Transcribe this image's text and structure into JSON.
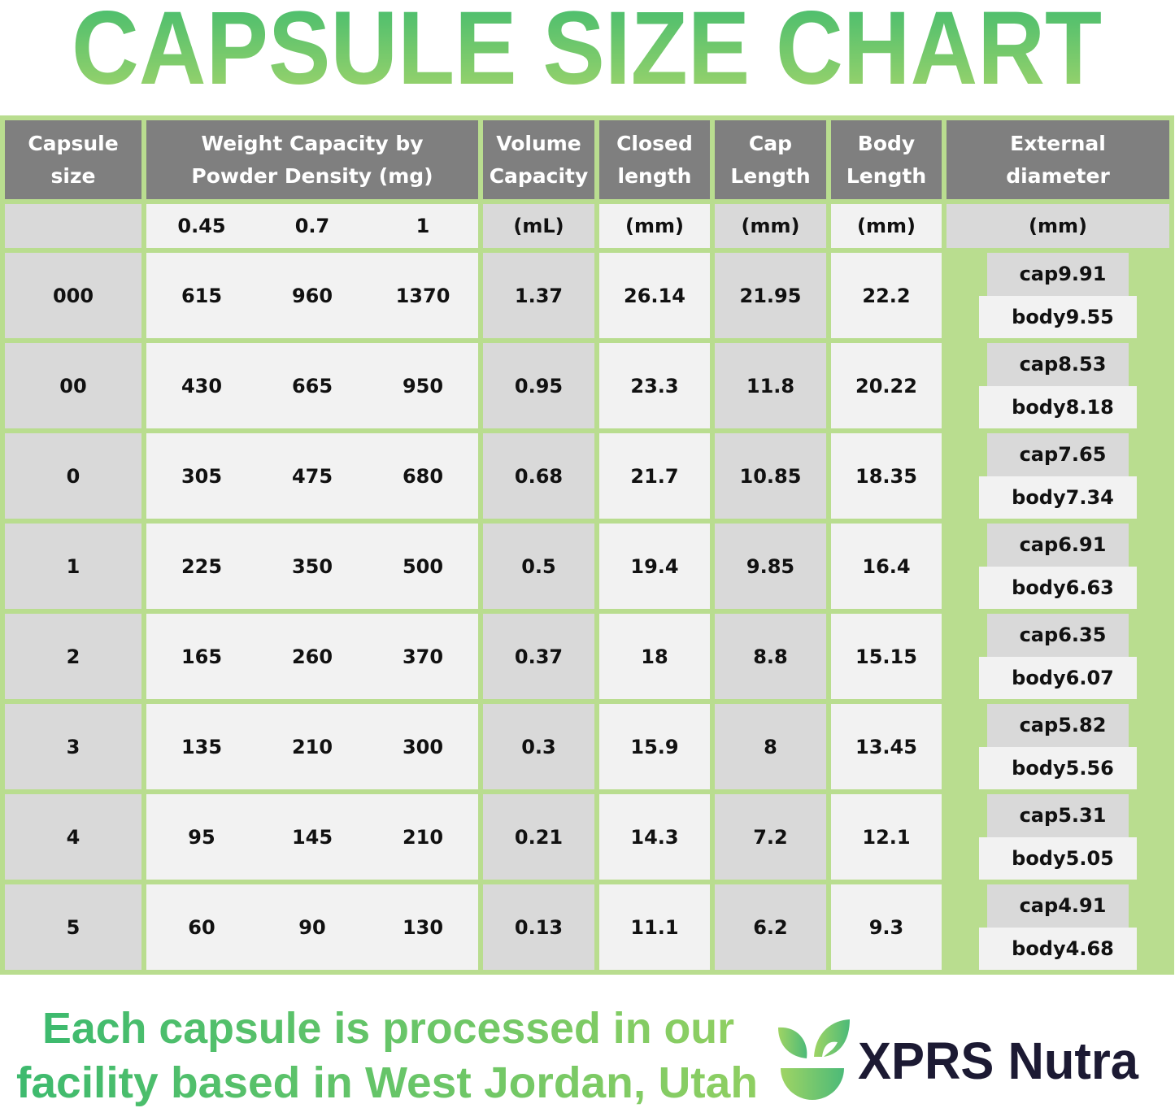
{
  "title": "CAPSULE SIZE CHART",
  "colors": {
    "title_start": "#3dba6e",
    "title_end": "#a6d66b",
    "border": "#b9dd8f",
    "header_bg": "#7f7f7f",
    "brand_dark": "#1c1a33"
  },
  "headers": [
    "Capsule size",
    "Weight Capacity by Powder Density (mg)",
    "Volume Capacity",
    "Closed length",
    "Cap Length",
    "Body Length",
    "External diameter"
  ],
  "header_lines": [
    [
      "Capsule size"
    ],
    [
      "Weight Capacity by",
      "Powder Density (mg)"
    ],
    [
      "Volume",
      "Capacity"
    ],
    [
      "Closed",
      "length"
    ],
    [
      "Cap",
      "Length"
    ],
    [
      "Body",
      "Length"
    ],
    [
      "External",
      "diameter"
    ]
  ],
  "units": {
    "densities": [
      "0.45",
      "0.7",
      "1"
    ],
    "volume": "(mL)",
    "closed": "(mm)",
    "cap": "(mm)",
    "body": "(mm)",
    "diameter": "(mm)"
  },
  "diameter_labels": {
    "cap": "cap",
    "body": "body"
  },
  "rows": [
    {
      "size": "000",
      "w": [
        "615",
        "960",
        "1370"
      ],
      "vol": "1.37",
      "closed": "26.14",
      "cap": "21.95",
      "body": "22.2",
      "d_cap": "9.91",
      "d_body": "9.55"
    },
    {
      "size": "00",
      "w": [
        "430",
        "665",
        "950"
      ],
      "vol": "0.95",
      "closed": "23.3",
      "cap": "11.8",
      "body": "20.22",
      "d_cap": "8.53",
      "d_body": "8.18"
    },
    {
      "size": "0",
      "w": [
        "305",
        "475",
        "680"
      ],
      "vol": "0.68",
      "closed": "21.7",
      "cap": "10.85",
      "body": "18.35",
      "d_cap": "7.65",
      "d_body": "7.34"
    },
    {
      "size": "1",
      "w": [
        "225",
        "350",
        "500"
      ],
      "vol": "0.5",
      "closed": "19.4",
      "cap": "9.85",
      "body": "16.4",
      "d_cap": "6.91",
      "d_body": "6.63"
    },
    {
      "size": "2",
      "w": [
        "165",
        "260",
        "370"
      ],
      "vol": "0.37",
      "closed": "18",
      "cap": "8.8",
      "body": "15.15",
      "d_cap": "6.35",
      "d_body": "6.07"
    },
    {
      "size": "3",
      "w": [
        "135",
        "210",
        "300"
      ],
      "vol": "0.3",
      "closed": "15.9",
      "cap": "8",
      "body": "13.45",
      "d_cap": "5.82",
      "d_body": "5.56"
    },
    {
      "size": "4",
      "w": [
        "95",
        "145",
        "210"
      ],
      "vol": "0.21",
      "closed": "14.3",
      "cap": "7.2",
      "body": "12.1",
      "d_cap": "5.31",
      "d_body": "5.05"
    },
    {
      "size": "5",
      "w": [
        "60",
        "90",
        "130"
      ],
      "vol": "0.13",
      "closed": "11.1",
      "cap": "6.2",
      "body": "9.3",
      "d_cap": "4.91",
      "d_body": "4.68"
    }
  ],
  "footer": {
    "line1": "Each capsule is processed in our",
    "line2": "facility based in West Jordan, Utah"
  },
  "brand": {
    "name": "XPRS Nutra",
    "icon": "leaf-bowl-logo-icon"
  }
}
